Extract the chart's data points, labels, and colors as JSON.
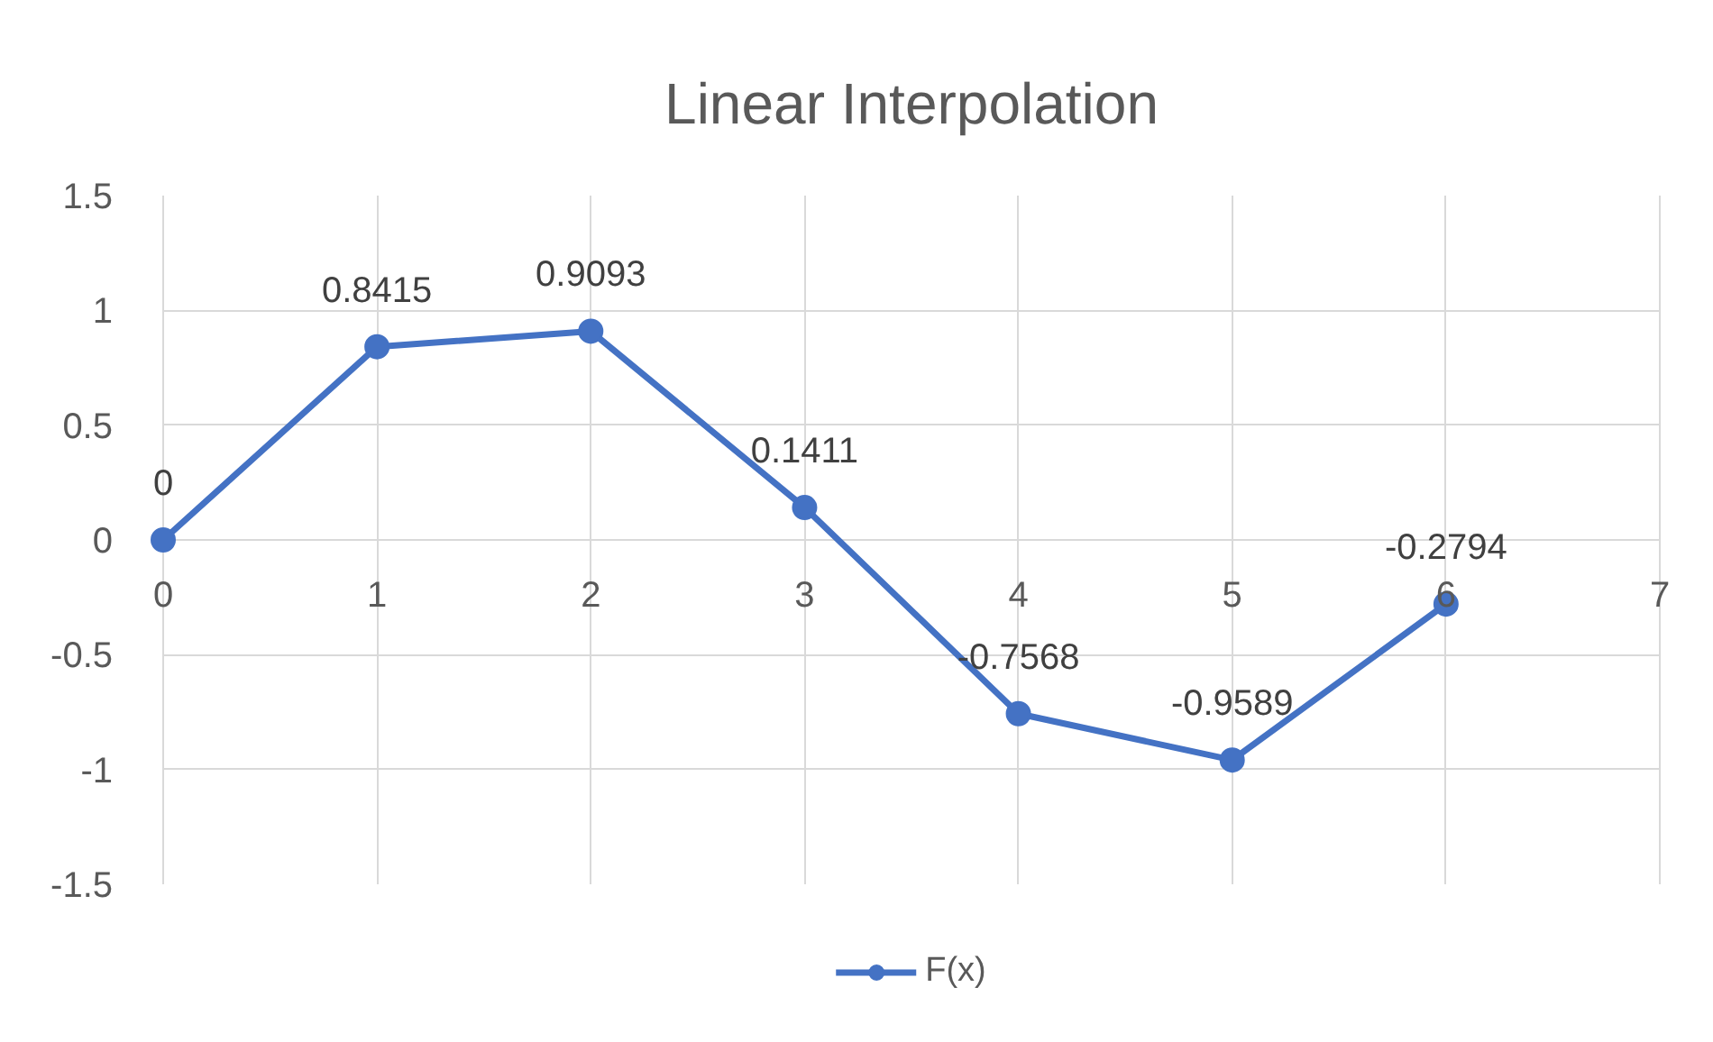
{
  "chart_data": {
    "type": "line",
    "title": "Linear Interpolation",
    "x": [
      0,
      1,
      2,
      3,
      4,
      5,
      6
    ],
    "series": [
      {
        "name": "F(x)",
        "color": "#4472c4",
        "values": [
          0,
          0.8415,
          0.9093,
          0.1411,
          -0.7568,
          -0.9589,
          -0.2794
        ]
      }
    ],
    "xlim": [
      0,
      7
    ],
    "xticks": [
      0,
      1,
      2,
      3,
      4,
      5,
      6,
      7
    ],
    "ylim": [
      -1.5,
      1.5
    ],
    "yticks": [
      -1.5,
      -1,
      -0.5,
      0,
      0.5,
      1,
      1.5
    ],
    "grid": true,
    "legend": "bottom",
    "marker": "circle",
    "line_style": "solid",
    "data_labels": true
  }
}
